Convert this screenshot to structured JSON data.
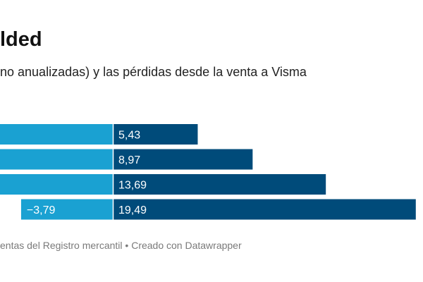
{
  "header": {
    "title": "lded",
    "subtitle": "no anualizadas) y las pérdidas desde la venta a Visma"
  },
  "footer": {
    "source": "entas del Registro mercantil • Creado con Datawrapper"
  },
  "colors": {
    "left_bar": "#1aa1d2",
    "right_bar": "#004b7a",
    "zero_line": "#ffffff",
    "label": "#ffffff"
  },
  "chart_data": {
    "type": "bar",
    "orientation": "horizontal",
    "stacking": "diverging",
    "title": "lded",
    "subtitle": "no anualizadas) y las pérdidas desde la venta a Visma",
    "rows": [
      {
        "left": null,
        "left_label": "",
        "right": 5.43,
        "right_label": "5,43"
      },
      {
        "left": null,
        "left_label": "",
        "right": 8.97,
        "right_label": "8,97"
      },
      {
        "left": null,
        "left_label": "",
        "right": 13.69,
        "right_label": "13,69"
      },
      {
        "left": -3.79,
        "left_label": "−3,79",
        "right": 19.49,
        "right_label": "19,49"
      }
    ]
  }
}
